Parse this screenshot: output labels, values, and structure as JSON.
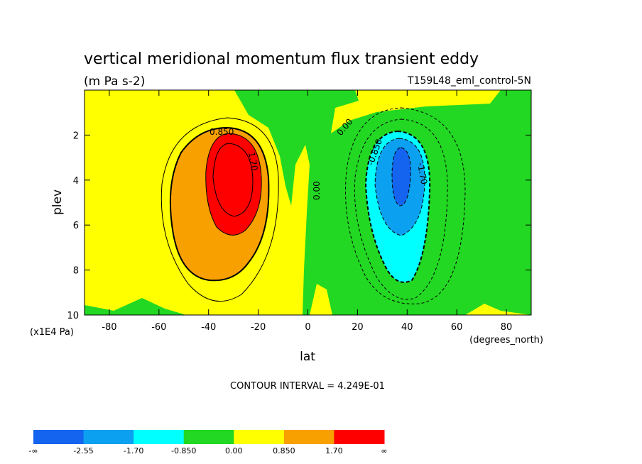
{
  "chart_data": {
    "type": "contour",
    "title": "vertical meridional momentum flux transient eddy",
    "units": "(m Pa s-2)",
    "dataset": "T159L48_eml_control-5N",
    "x_label": "lat",
    "y_label": "plev",
    "x_units": "(degrees_north)",
    "y_units": "(x1E4 Pa)",
    "xlim": [
      -90,
      90
    ],
    "ylim": [
      0,
      10
    ],
    "y_inverted": true,
    "xticks": [
      -80,
      -60,
      -40,
      -20,
      0,
      20,
      40,
      60,
      80
    ],
    "yticks": [
      2,
      4,
      6,
      8,
      10
    ],
    "contour_labels": [
      "0.850",
      "1.70",
      "0.00",
      "0.00",
      "-0.850",
      "-1.70"
    ],
    "footnote": "CONTOUR INTERVAL = 4.249E-01",
    "colorbar": {
      "colors": [
        "#1464f0",
        "#0ca0f0",
        "#00ffff",
        "#22d822",
        "#ffff00",
        "#f8a000",
        "#ff0000"
      ],
      "labels": [
        "-∞",
        "-2.55",
        "-1.70",
        "-0.850",
        "0.00",
        "0.850",
        "1.70",
        "∞"
      ]
    }
  }
}
